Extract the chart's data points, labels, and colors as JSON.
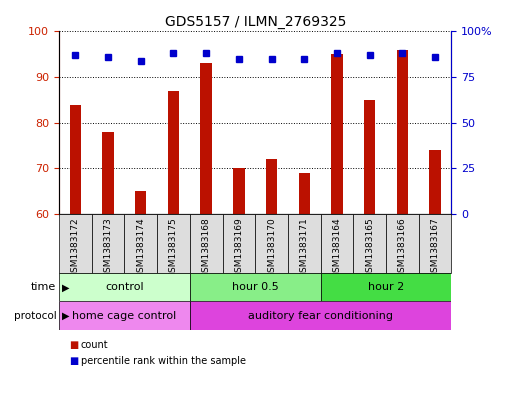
{
  "title": "GDS5157 / ILMN_2769325",
  "samples": [
    "GSM1383172",
    "GSM1383173",
    "GSM1383174",
    "GSM1383175",
    "GSM1383168",
    "GSM1383169",
    "GSM1383170",
    "GSM1383171",
    "GSM1383164",
    "GSM1383165",
    "GSM1383166",
    "GSM1383167"
  ],
  "counts": [
    84,
    78,
    65,
    87,
    93,
    70,
    72,
    69,
    95,
    85,
    96,
    74
  ],
  "percentiles": [
    87,
    86,
    84,
    88,
    88,
    85,
    85,
    85,
    88,
    87,
    88,
    86
  ],
  "ylim_left": [
    60,
    100
  ],
  "ylim_right": [
    0,
    100
  ],
  "yticks_left": [
    60,
    70,
    80,
    90,
    100
  ],
  "yticks_right": [
    0,
    25,
    50,
    75,
    100
  ],
  "ytick_labels_right": [
    "0",
    "25",
    "50",
    "75",
    "100%"
  ],
  "bar_color": "#bb1100",
  "dot_color": "#0000cc",
  "time_groups": [
    {
      "label": "control",
      "start": 0,
      "end": 4,
      "color": "#ccffcc"
    },
    {
      "label": "hour 0.5",
      "start": 4,
      "end": 8,
      "color": "#88ee88"
    },
    {
      "label": "hour 2",
      "start": 8,
      "end": 12,
      "color": "#44dd44"
    }
  ],
  "protocol_groups": [
    {
      "label": "home cage control",
      "start": 0,
      "end": 4,
      "color": "#ee88ee"
    },
    {
      "label": "auditory fear conditioning",
      "start": 4,
      "end": 12,
      "color": "#dd44dd"
    }
  ],
  "legend_count_color": "#bb1100",
  "legend_dot_color": "#0000cc",
  "bar_width": 0.35
}
